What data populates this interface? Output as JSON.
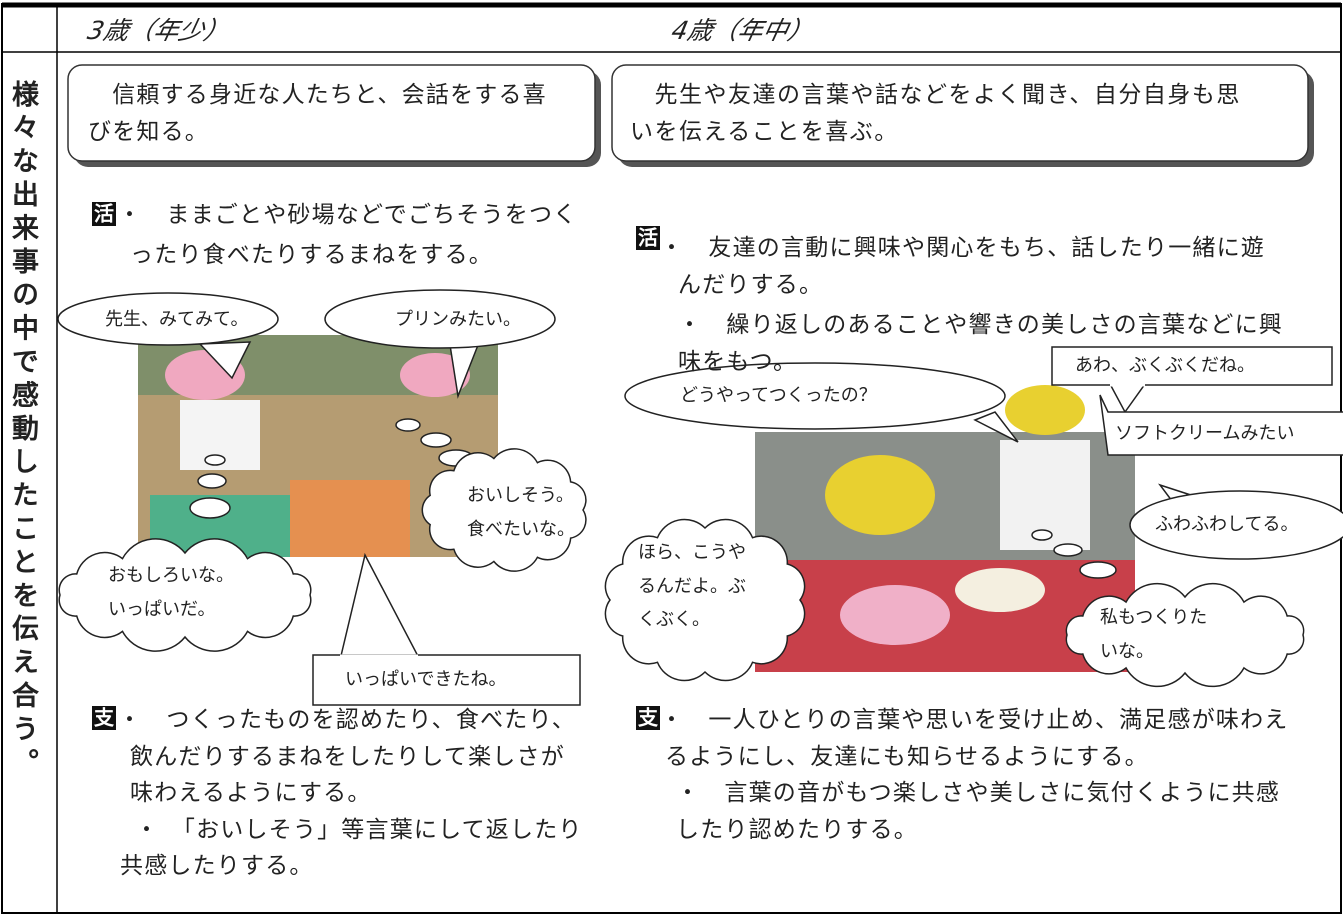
{
  "header": {
    "col1": "3歳（年少）",
    "col2": "4歳（年中）"
  },
  "side_label": "様々な出来事の中で感動したことを伝え合う。",
  "age3": {
    "aim": [
      "　信頼する身近な人たちと、会話をする喜",
      "びを知る。"
    ],
    "activity": {
      "marker": "活",
      "items": [
        [
          "・　ままごとや砂場などでごちそうをつく",
          "ったり食べたりするまねをする。"
        ]
      ]
    },
    "bubbles": [
      [
        "先生、みてみて。"
      ],
      [
        "プリンみたい。"
      ],
      [
        "おいしそう。",
        "食べたいな。"
      ],
      [
        "おもしろいな。",
        "いっぱいだ。"
      ],
      [
        "いっぱいできたね。"
      ]
    ],
    "support": {
      "marker": "支",
      "items": [
        [
          "・　つくったものを認めたり、食べたり、",
          "飲んだりするまねをしたりして楽しさが",
          "味わえるようにする。"
        ],
        [
          "・　「おいしそう」等言葉にして返したり",
          "共感したりする。"
        ]
      ]
    }
  },
  "age4": {
    "aim": [
      "　先生や友達の言葉や話などをよく聞き、自分自身も思",
      "いを伝えることを喜ぶ。"
    ],
    "activity": {
      "marker": "活",
      "items": [
        [
          "・　友達の言動に興味や関心をもち、話したり一緒に遊",
          "んだりする。"
        ],
        [
          "・　繰り返しのあることや響きの美しさの言葉などに興",
          "味をもつ。"
        ]
      ]
    },
    "bubbles": [
      [
        "どうやってつくったの？"
      ],
      [
        "あわ、ぶくぶくだね。"
      ],
      [
        "ソフトクリームみたい"
      ],
      [
        "ふわふわしてる。"
      ],
      [
        "ほら、こうや",
        "るんだよ。ぶ",
        "くぶく。"
      ],
      [
        "私もつくりた",
        "いな。"
      ]
    ],
    "support": {
      "marker": "支",
      "items": [
        [
          "・　一人ひとりの言葉や思いを受け止め、満足感が味わえ",
          "るようにし、友達にも知らせるようにする。"
        ],
        [
          "・　言葉の音がもつ楽しさや美しさに気付くように共感",
          "したり認めたりする。"
        ]
      ]
    }
  }
}
